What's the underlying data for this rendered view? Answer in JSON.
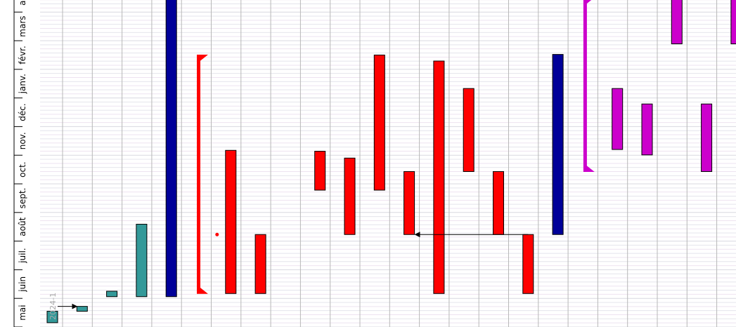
{
  "chart_data": {
    "type": "gantt",
    "orientation": "vertical",
    "time_axis_labels": [
      "mai",
      "juin",
      "juil.",
      "août",
      "sept.",
      "oct.",
      "nov.",
      "déc.",
      "janv.",
      "févr.",
      "mars",
      "avr."
    ],
    "grid": true,
    "tasks": [
      {
        "type": "bar",
        "column": 0,
        "start": 0.15,
        "end": 0.55,
        "color": "#339999",
        "label": "2024-1"
      },
      {
        "type": "bar",
        "column": 1,
        "start": 0.55,
        "end": 0.72,
        "color": "#339999"
      },
      {
        "type": "bar",
        "column": 2,
        "start": 1.06,
        "end": 1.25,
        "color": "#339999"
      },
      {
        "type": "bar",
        "column": 3,
        "start": 1.06,
        "end": 3.59,
        "color": "#339999"
      },
      {
        "type": "bar",
        "column": 4,
        "start": 1.06,
        "end": 11.5,
        "color": "#000099"
      },
      {
        "type": "bracket",
        "column": 5,
        "start": 1.17,
        "end": 9.5,
        "color": "#ff0000"
      },
      {
        "type": "bar",
        "column": 6,
        "start": 1.17,
        "end": 6.17,
        "color": "#ff0000"
      },
      {
        "type": "bar",
        "column": 7,
        "start": 1.17,
        "end": 3.23,
        "color": "#ff0000"
      },
      {
        "type": "bar",
        "column": 9,
        "start": 4.78,
        "end": 6.14,
        "color": "#ff0000"
      },
      {
        "type": "bar",
        "column": 10,
        "start": 3.23,
        "end": 5.9,
        "color": "#ff0000"
      },
      {
        "type": "bar",
        "column": 11,
        "start": 4.78,
        "end": 9.5,
        "color": "#ff0000"
      },
      {
        "type": "bar",
        "column": 12,
        "start": 3.23,
        "end": 5.43,
        "color": "#ff0000"
      },
      {
        "type": "bar",
        "column": 13,
        "start": 1.17,
        "end": 9.29,
        "color": "#ff0000"
      },
      {
        "type": "bar",
        "column": 14,
        "start": 5.43,
        "end": 8.33,
        "color": "#ff0000"
      },
      {
        "type": "bar",
        "column": 15,
        "start": 3.23,
        "end": 5.43,
        "color": "#ff0000"
      },
      {
        "type": "bar",
        "column": 16,
        "start": 1.17,
        "end": 3.23,
        "color": "#ff0000"
      },
      {
        "type": "bar",
        "column": 17,
        "start": 3.23,
        "end": 9.52,
        "color": "#000099"
      },
      {
        "type": "bracket",
        "column": 18,
        "start": 5.43,
        "end": 11.5,
        "color": "#cc00cc"
      },
      {
        "type": "bar",
        "column": 19,
        "start": 6.2,
        "end": 8.33,
        "color": "#cc00cc"
      },
      {
        "type": "bar",
        "column": 20,
        "start": 6.01,
        "end": 7.79,
        "color": "#cc00cc"
      },
      {
        "type": "bar",
        "column": 21,
        "start": 9.89,
        "end": 11.5,
        "color": "#cc00cc"
      },
      {
        "type": "bar",
        "column": 22,
        "start": 5.43,
        "end": 7.79,
        "color": "#cc00cc"
      },
      {
        "type": "bar",
        "column": 23,
        "start": 9.89,
        "end": 11.5,
        "color": "#cc00cc"
      },
      {
        "type": "bar",
        "column": 24,
        "start": 8.61,
        "end": 10.52,
        "color": "#cc00cc"
      }
    ],
    "dependencies": [
      {
        "from_column": 0,
        "to_column": 1,
        "at": 0.72
      },
      {
        "from_column": 16,
        "to_column": 12,
        "at": 3.23
      }
    ],
    "markers": [
      {
        "column": 6,
        "at": 3.23,
        "color": "#ff0000"
      }
    ]
  }
}
